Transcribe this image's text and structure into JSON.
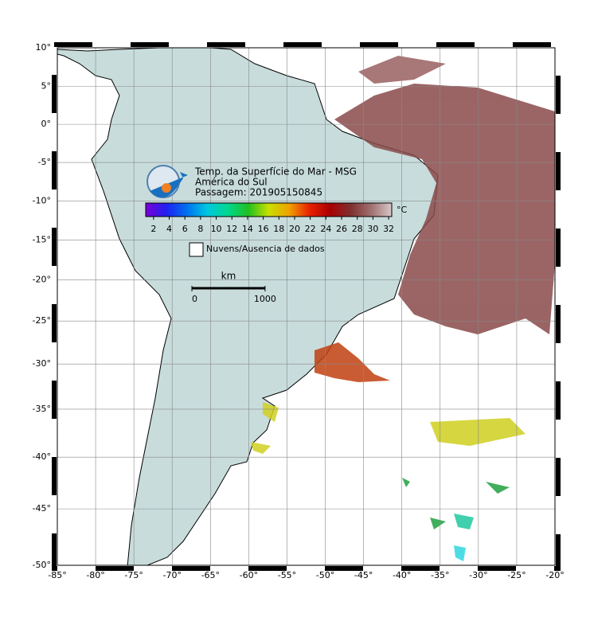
{
  "map": {
    "title": "Temp. da Superfície do Mar - MSG",
    "subtitle": "América do Sul",
    "pass": "Passagem: 201905150845",
    "projection": "mercator",
    "xlim": [
      -85,
      -20
    ],
    "ylim": [
      -50,
      10
    ],
    "grid": true,
    "xticks": [
      {
        "value": -85,
        "label": "-85°"
      },
      {
        "value": -80,
        "label": "-80°"
      },
      {
        "value": -75,
        "label": "-75°"
      },
      {
        "value": -70,
        "label": "-70°"
      },
      {
        "value": -65,
        "label": "-65°"
      },
      {
        "value": -60,
        "label": "-60°"
      },
      {
        "value": -55,
        "label": "-55°"
      },
      {
        "value": -50,
        "label": "-50°"
      },
      {
        "value": -45,
        "label": "-45°"
      },
      {
        "value": -40,
        "label": "-40°"
      },
      {
        "value": -35,
        "label": "-35°"
      },
      {
        "value": -30,
        "label": "-30°"
      },
      {
        "value": -25,
        "label": "-25°"
      },
      {
        "value": -20,
        "label": "-20°"
      }
    ],
    "yticks": [
      {
        "value": 10,
        "label": "10°"
      },
      {
        "value": 5,
        "label": "5°"
      },
      {
        "value": 0,
        "label": "0°"
      },
      {
        "value": -5,
        "label": "-5°"
      },
      {
        "value": -10,
        "label": "-10°"
      },
      {
        "value": -15,
        "label": "-15°"
      },
      {
        "value": -20,
        "label": "-20°"
      },
      {
        "value": -25,
        "label": "-25°"
      },
      {
        "value": -30,
        "label": "-30°"
      },
      {
        "value": -35,
        "label": "-35°"
      },
      {
        "value": -40,
        "label": "-40°"
      },
      {
        "value": -45,
        "label": "-45°"
      },
      {
        "value": -50,
        "label": "-50°"
      }
    ],
    "colorbar": {
      "unit": "°C",
      "lim": [
        1,
        32.4
      ],
      "ticks": [
        2,
        4,
        6,
        8,
        10,
        12,
        14,
        16,
        18,
        20,
        22,
        24,
        26,
        28,
        30,
        32
      ],
      "colors": [
        "#7a00d8",
        "#2020f0",
        "#0070f0",
        "#00c8e0",
        "#00d890",
        "#20c020",
        "#c8e000",
        "#f0a000",
        "#e82000",
        "#a80000",
        "#803030",
        "#a07070",
        "#d8c8c8"
      ]
    },
    "legend": "Nuvens/Ausencia de dados",
    "scale_bar": {
      "unit": "km",
      "ticks": [
        0,
        1000
      ],
      "latitude": -20
    }
  }
}
